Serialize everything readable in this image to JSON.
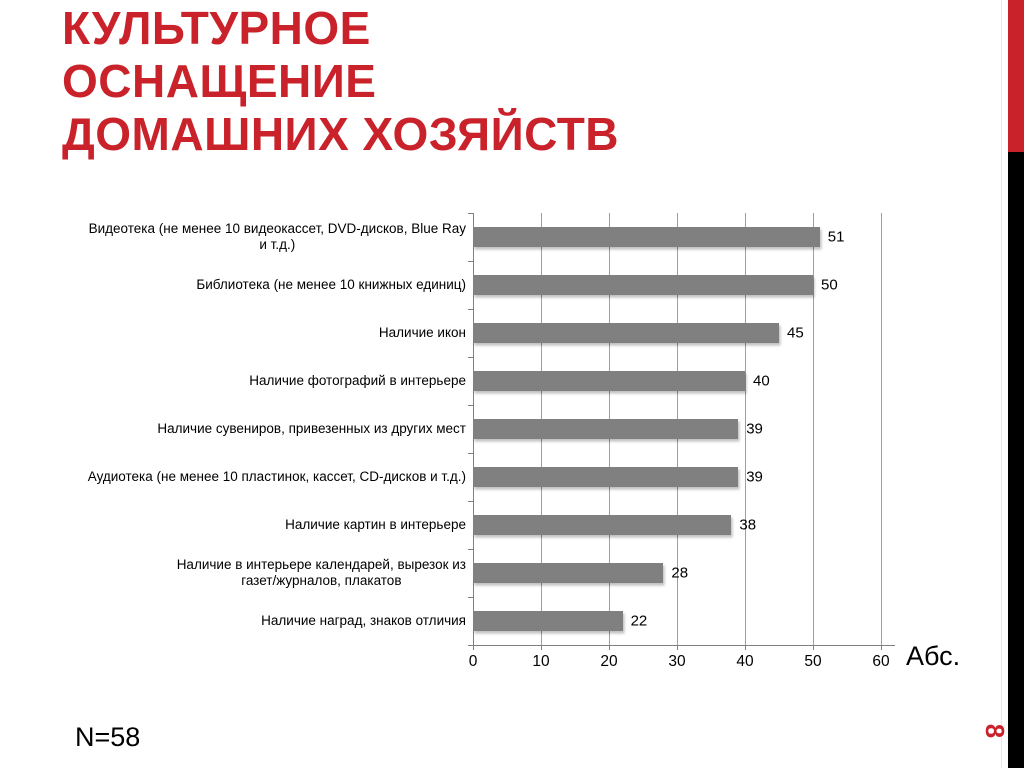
{
  "slide": {
    "title_lines": [
      "КУЛЬТУРНОЕ",
      "ОСНАЩЕНИЕ",
      "ДОМАШНИХ ХОЗЯЙСТВ"
    ],
    "footnote": "N=58",
    "page_number": "8",
    "colors": {
      "accent_red": "#C9222B",
      "bar_gray": "#808080",
      "stripe_black": "#000000",
      "gridline_gray": "#9E9E9E"
    }
  },
  "chart_data": {
    "type": "bar",
    "orientation": "horizontal",
    "title": "",
    "xlabel": "",
    "ylabel": "",
    "axis_label": "Абс.",
    "categories": [
      "Видеотека (не менее 10 видеокассет, DVD-дисков, Blue Ray\nи т.д.)",
      "Библиотека (не менее 10 книжных единиц)",
      "Наличие икон",
      "Наличие фотографий в интерьере",
      "Наличие сувениров, привезенных из других мест",
      "Аудиотека (не менее 10 пластинок, кассет, CD-дисков и т.д.)",
      "Наличие картин в интерьере",
      "Наличие в интерьере календарей, вырезок из\nгазет/журналов, плакатов",
      "Наличие наград, знаков отличия"
    ],
    "values": [
      51,
      50,
      45,
      40,
      39,
      39,
      38,
      28,
      22
    ],
    "data_labels": true,
    "x_ticks": [
      0,
      10,
      20,
      30,
      40,
      50,
      60
    ],
    "xlim": [
      0,
      62
    ],
    "grid": true,
    "legend": "none"
  }
}
